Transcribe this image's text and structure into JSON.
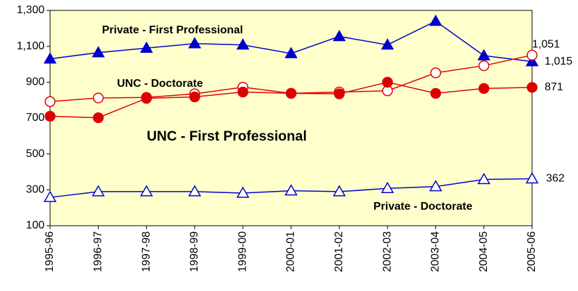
{
  "chart_data": {
    "type": "line",
    "categories": [
      "1995-96",
      "1996-97",
      "1997-98",
      "1998-99",
      "1999-00",
      "2000-01",
      "2001-02",
      "2002-03",
      "2003-04",
      "2004-05",
      "2005-06"
    ],
    "ylim": [
      100,
      1300
    ],
    "yticks": [
      100,
      300,
      500,
      700,
      900,
      {
        "value": 1100,
        "label": "1,100"
      },
      {
        "value": 1300,
        "label": "1,300"
      }
    ],
    "plot_background": "#ffffcc",
    "series": [
      {
        "name": "Private - First Professional",
        "color": "#0000cc",
        "marker": "triangle",
        "filled": true,
        "values": [
          1030,
          1065,
          1090,
          1115,
          1108,
          1060,
          1155,
          1108,
          1240,
          1048,
          1015
        ],
        "value_labels": [
          null,
          null,
          null,
          null,
          null,
          null,
          null,
          null,
          null,
          null,
          "1,015"
        ]
      },
      {
        "name": "UNC - Doctorate",
        "color": "#dd0000",
        "marker": "circle",
        "filled": false,
        "values": [
          792,
          812,
          815,
          835,
          872,
          838,
          845,
          852,
          952,
          992,
          1051
        ],
        "value_labels": [
          null,
          null,
          null,
          null,
          null,
          null,
          null,
          null,
          null,
          null,
          "1,051"
        ]
      },
      {
        "name": "UNC - First Professional",
        "color": "#dd0000",
        "marker": "circle",
        "filled": true,
        "values": [
          710,
          702,
          810,
          818,
          845,
          838,
          835,
          900,
          838,
          865,
          871
        ],
        "value_labels": [
          null,
          null,
          null,
          null,
          null,
          null,
          null,
          null,
          null,
          null,
          "871"
        ]
      },
      {
        "name": "Private - Doctorate",
        "color": "#0000cc",
        "marker": "triangle",
        "filled": false,
        "values": [
          258,
          290,
          290,
          290,
          282,
          295,
          290,
          308,
          318,
          358,
          362
        ],
        "value_labels": [
          null,
          null,
          null,
          null,
          null,
          null,
          null,
          null,
          null,
          null,
          "362"
        ]
      }
    ]
  }
}
